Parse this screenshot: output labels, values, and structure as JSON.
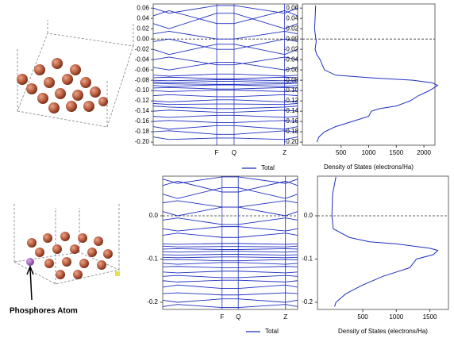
{
  "chart_data": [
    {
      "type": "line",
      "color": "#1f2fbf",
      "xlim": [
        0,
        1
      ],
      "x": [
        0,
        0.11,
        0.44,
        0.56,
        0.91,
        1
      ],
      "xticks": [
        {
          "value": 0.44,
          "label": "F"
        },
        {
          "value": 0.56,
          "label": "Q"
        },
        {
          "value": 0.91,
          "label": "Z"
        }
      ],
      "xgrid": true,
      "ylim": [
        -0.206,
        0.068
      ],
      "yticks": [
        {
          "value": -0.2,
          "label": "-0.20"
        },
        -0.18,
        -0.16,
        -0.14,
        -0.12,
        {
          "value": -0.1,
          "label": "-0.10"
        },
        -0.08,
        -0.06,
        -0.04,
        -0.02,
        {
          "value": 0,
          "label": "0.00"
        },
        0.02,
        0.04,
        0.06
      ],
      "fermi_level": 0,
      "series": [
        {
          "values": [
            0.06,
            0.05,
            0.065,
            0.065,
            0.05,
            0.06
          ]
        },
        {
          "values": [
            0.045,
            0.055,
            0.03,
            0.03,
            0.055,
            0.045
          ]
        },
        {
          "values": [
            0.03,
            0.02,
            0.05,
            0.05,
            0.02,
            0.03
          ]
        },
        {
          "values": [
            0.01,
            0.015,
            0.0,
            0.0,
            0.015,
            0.01
          ]
        },
        {
          "values": [
            -0.005,
            0.0,
            -0.02,
            -0.02,
            0.0,
            -0.005
          ]
        },
        {
          "values": [
            -0.02,
            -0.03,
            -0.01,
            -0.01,
            -0.03,
            -0.02
          ]
        },
        {
          "values": [
            -0.04,
            -0.035,
            -0.05,
            -0.05,
            -0.035,
            -0.04
          ]
        },
        {
          "values": [
            -0.055,
            -0.06,
            -0.045,
            -0.045,
            -0.06,
            -0.055
          ]
        },
        {
          "values": [
            -0.07,
            -0.072,
            -0.068,
            -0.068,
            -0.072,
            -0.07
          ]
        },
        {
          "values": [
            -0.075,
            -0.074,
            -0.077,
            -0.077,
            -0.074,
            -0.075
          ]
        },
        {
          "values": [
            -0.08,
            -0.081,
            -0.079,
            -0.079,
            -0.081,
            -0.08
          ]
        },
        {
          "values": [
            -0.083,
            -0.085,
            -0.082,
            -0.082,
            -0.085,
            -0.083
          ]
        },
        {
          "values": [
            -0.086,
            -0.087,
            -0.088,
            -0.088,
            -0.087,
            -0.086
          ]
        },
        {
          "values": [
            -0.09,
            -0.092,
            -0.089,
            -0.089,
            -0.092,
            -0.09
          ]
        },
        {
          "values": [
            -0.095,
            -0.094,
            -0.097,
            -0.097,
            -0.094,
            -0.095
          ]
        },
        {
          "values": [
            -0.1,
            -0.102,
            -0.099,
            -0.099,
            -0.102,
            -0.1
          ]
        },
        {
          "values": [
            -0.11,
            -0.108,
            -0.112,
            -0.112,
            -0.108,
            -0.11
          ]
        },
        {
          "values": [
            -0.12,
            -0.122,
            -0.118,
            -0.118,
            -0.122,
            -0.12
          ]
        },
        {
          "values": [
            -0.125,
            -0.127,
            -0.126,
            -0.126,
            -0.127,
            -0.125
          ]
        },
        {
          "values": [
            -0.13,
            -0.132,
            -0.135,
            -0.135,
            -0.132,
            -0.13
          ]
        },
        {
          "values": [
            -0.14,
            -0.138,
            -0.142,
            -0.142,
            -0.138,
            -0.14
          ]
        },
        {
          "values": [
            -0.15,
            -0.152,
            -0.148,
            -0.148,
            -0.152,
            -0.15
          ]
        },
        {
          "values": [
            -0.16,
            -0.158,
            -0.162,
            -0.162,
            -0.158,
            -0.16
          ]
        },
        {
          "values": [
            -0.17,
            -0.175,
            -0.168,
            -0.168,
            -0.175,
            -0.17
          ]
        },
        {
          "values": [
            -0.18,
            -0.178,
            -0.185,
            -0.185,
            -0.178,
            -0.18
          ]
        },
        {
          "values": [
            -0.19,
            -0.195,
            -0.192,
            -0.192,
            -0.195,
            -0.19
          ]
        }
      ]
    },
    {
      "type": "line",
      "color": "#1f2fbf",
      "xlabel": "Density of States (electrons/Ha)",
      "xlim": [
        -200,
        2200
      ],
      "xticks": [
        500,
        1000,
        1500,
        2000
      ],
      "ylim": [
        -0.206,
        0.068
      ],
      "yticks": [
        {
          "value": -0.2,
          "label": "-0.20"
        },
        -0.18,
        -0.16,
        -0.14,
        -0.12,
        {
          "value": -0.1,
          "label": "-0.10"
        },
        -0.08,
        -0.06,
        -0.04,
        -0.02,
        {
          "value": 0,
          "label": "0.00"
        },
        0.02,
        0.04,
        0.06
      ],
      "fermi_level": 0,
      "legend": "below-left-panel",
      "x": [
        40,
        30,
        20,
        50,
        30,
        60,
        120,
        200,
        400,
        1000,
        1800,
        2150,
        2250,
        2100,
        1900,
        1750,
        1500,
        1200,
        1050,
        1000,
        700,
        400,
        200,
        100,
        60
      ],
      "series": [
        {
          "name": "Total",
          "values": [
            0.065,
            0.04,
            0.02,
            -0.005,
            -0.02,
            -0.03,
            -0.04,
            -0.06,
            -0.07,
            -0.075,
            -0.08,
            -0.085,
            -0.09,
            -0.1,
            -0.11,
            -0.12,
            -0.13,
            -0.135,
            -0.14,
            -0.15,
            -0.16,
            -0.17,
            -0.18,
            -0.19,
            -0.2
          ]
        }
      ]
    },
    {
      "type": "line",
      "color": "#1f2fbf",
      "xlim": [
        0,
        1
      ],
      "x": [
        0,
        0.11,
        0.44,
        0.56,
        0.91,
        1
      ],
      "xticks": [
        {
          "value": 0.44,
          "label": "F"
        },
        {
          "value": 0.56,
          "label": "Q"
        },
        {
          "value": 0.91,
          "label": "Z"
        }
      ],
      "xgrid": true,
      "ylim": [
        -0.2165,
        0.0917
      ],
      "yticks": [
        -0.2,
        -0.1,
        {
          "value": 0,
          "label": "0.0"
        }
      ],
      "fermi_level": 0,
      "series": [
        {
          "values": [
            0.085,
            0.075,
            0.09,
            0.09,
            0.075,
            0.085
          ]
        },
        {
          "values": [
            0.07,
            0.08,
            0.055,
            0.055,
            0.08,
            0.07
          ]
        },
        {
          "values": [
            0.05,
            0.04,
            0.065,
            0.065,
            0.04,
            0.05
          ]
        },
        {
          "values": [
            0.03,
            0.035,
            0.02,
            0.02,
            0.035,
            0.03
          ]
        },
        {
          "values": [
            0.01,
            0.0,
            0.02,
            0.02,
            0.0,
            0.01
          ]
        },
        {
          "values": [
            -0.01,
            -0.005,
            -0.02,
            -0.02,
            -0.005,
            -0.01
          ]
        },
        {
          "values": [
            -0.03,
            -0.035,
            -0.025,
            -0.025,
            -0.035,
            -0.03
          ]
        },
        {
          "values": [
            -0.045,
            -0.04,
            -0.05,
            -0.05,
            -0.04,
            -0.045
          ]
        },
        {
          "values": [
            -0.065,
            -0.066,
            -0.064,
            -0.064,
            -0.066,
            -0.065
          ]
        },
        {
          "values": [
            -0.07,
            -0.072,
            -0.071,
            -0.071,
            -0.072,
            -0.07
          ]
        },
        {
          "values": [
            -0.077,
            -0.076,
            -0.078,
            -0.078,
            -0.076,
            -0.077
          ]
        },
        {
          "values": [
            -0.083,
            -0.084,
            -0.082,
            -0.082,
            -0.084,
            -0.083
          ]
        },
        {
          "values": [
            -0.09,
            -0.091,
            -0.089,
            -0.089,
            -0.091,
            -0.09
          ]
        },
        {
          "values": [
            -0.096,
            -0.097,
            -0.095,
            -0.095,
            -0.097,
            -0.096
          ]
        },
        {
          "values": [
            -0.102,
            -0.101,
            -0.104,
            -0.104,
            -0.101,
            -0.102
          ]
        },
        {
          "values": [
            -0.11,
            -0.112,
            -0.108,
            -0.108,
            -0.112,
            -0.11
          ]
        },
        {
          "values": [
            -0.118,
            -0.117,
            -0.12,
            -0.12,
            -0.117,
            -0.118
          ]
        },
        {
          "values": [
            -0.13,
            -0.132,
            -0.128,
            -0.128,
            -0.132,
            -0.13
          ]
        },
        {
          "values": [
            -0.14,
            -0.138,
            -0.143,
            -0.143,
            -0.138,
            -0.14
          ]
        },
        {
          "values": [
            -0.15,
            -0.153,
            -0.149,
            -0.149,
            -0.153,
            -0.15
          ]
        },
        {
          "values": [
            -0.165,
            -0.16,
            -0.168,
            -0.168,
            -0.16,
            -0.165
          ]
        },
        {
          "values": [
            -0.18,
            -0.178,
            -0.183,
            -0.183,
            -0.178,
            -0.18
          ]
        },
        {
          "values": [
            -0.195,
            -0.2,
            -0.192,
            -0.192,
            -0.2,
            -0.195
          ]
        },
        {
          "values": [
            -0.21,
            -0.205,
            -0.212,
            -0.212,
            -0.205,
            -0.21
          ]
        }
      ]
    },
    {
      "type": "line",
      "color": "#1f2fbf",
      "xlabel": "Density of States (electrons/Ha)",
      "xlim": [
        -175,
        1777
      ],
      "xticks": [
        500,
        1000,
        1500
      ],
      "ylim": [
        -0.2165,
        0.0917
      ],
      "yticks": [
        -0.2,
        -0.1,
        {
          "value": 0,
          "label": "0.0"
        }
      ],
      "fermi_level": 0,
      "legend": "below-left-panel",
      "x": [
        100,
        50,
        40,
        60,
        300,
        600,
        1000,
        1500,
        1620,
        1550,
        1300,
        1200,
        800,
        500,
        250,
        100,
        80
      ],
      "series": [
        {
          "name": "Total",
          "values": [
            0.09,
            0.05,
            0.0,
            -0.03,
            -0.05,
            -0.06,
            -0.065,
            -0.075,
            -0.08,
            -0.09,
            -0.1,
            -0.12,
            -0.14,
            -0.16,
            -0.18,
            -0.2,
            -0.21
          ]
        }
      ]
    }
  ],
  "figure_annotation": {
    "label": "Phosphores Atom"
  }
}
